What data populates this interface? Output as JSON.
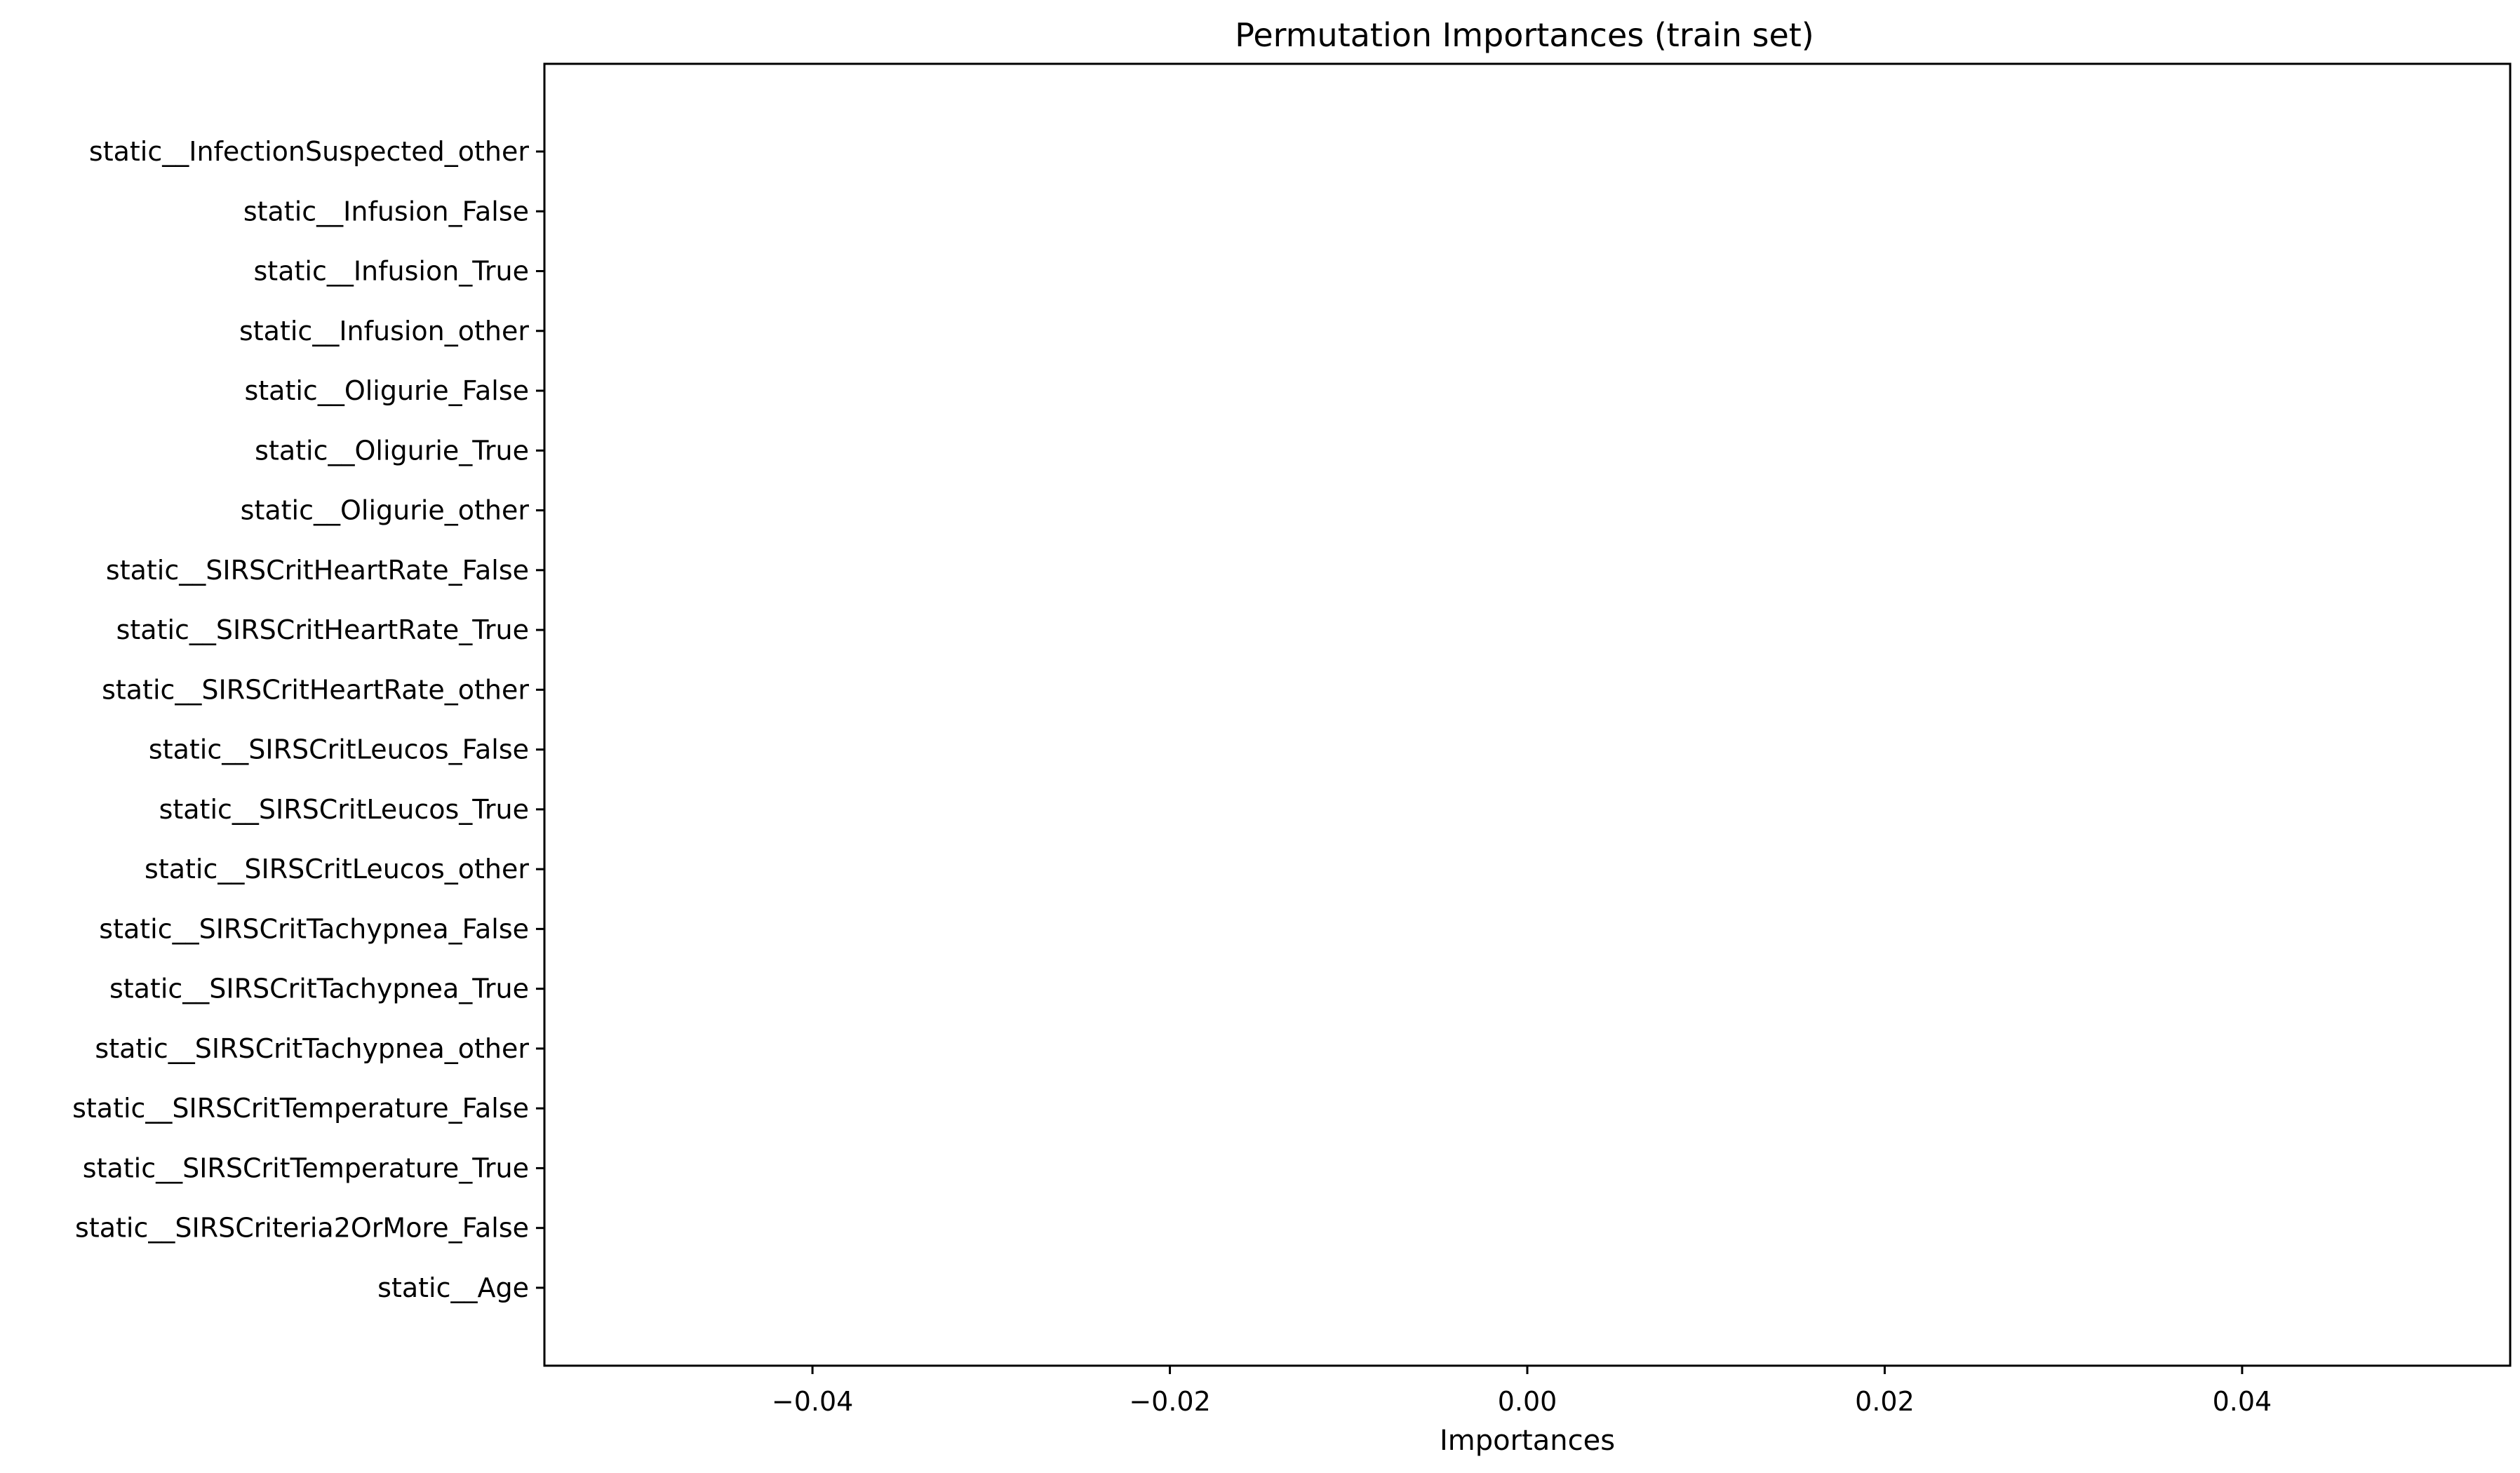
{
  "chart_data": {
    "type": "bar",
    "orientation": "horizontal",
    "title": "Permutation Importances (train set)",
    "xlabel": "Importances",
    "ylabel": "",
    "xlim": [
      -0.055,
      0.055
    ],
    "xticks": [
      -0.04,
      -0.02,
      0.0,
      0.02,
      0.04
    ],
    "xtick_labels": [
      "−0.04",
      "−0.02",
      "0.00",
      "0.02",
      "0.04"
    ],
    "grid": false,
    "categories": [
      "static__InfectionSuspected_other",
      "static__Infusion_False",
      "static__Infusion_True",
      "static__Infusion_other",
      "static__Oligurie_False",
      "static__Oligurie_True",
      "static__Oligurie_other",
      "static__SIRSCritHeartRate_False",
      "static__SIRSCritHeartRate_True",
      "static__SIRSCritHeartRate_other",
      "static__SIRSCritLeucos_False",
      "static__SIRSCritLeucos_True",
      "static__SIRSCritLeucos_other",
      "static__SIRSCritTachypnea_False",
      "static__SIRSCritTachypnea_True",
      "static__SIRSCritTachypnea_other",
      "static__SIRSCritTemperature_False",
      "static__SIRSCritTemperature_True",
      "static__SIRSCriteria2OrMore_False",
      "static__Age"
    ],
    "values": [
      0,
      0,
      0,
      0,
      0,
      0,
      0,
      0,
      0,
      0,
      0,
      0,
      0,
      0,
      0,
      0,
      0,
      0,
      0,
      0
    ],
    "bar_color": "#1f77b4"
  }
}
